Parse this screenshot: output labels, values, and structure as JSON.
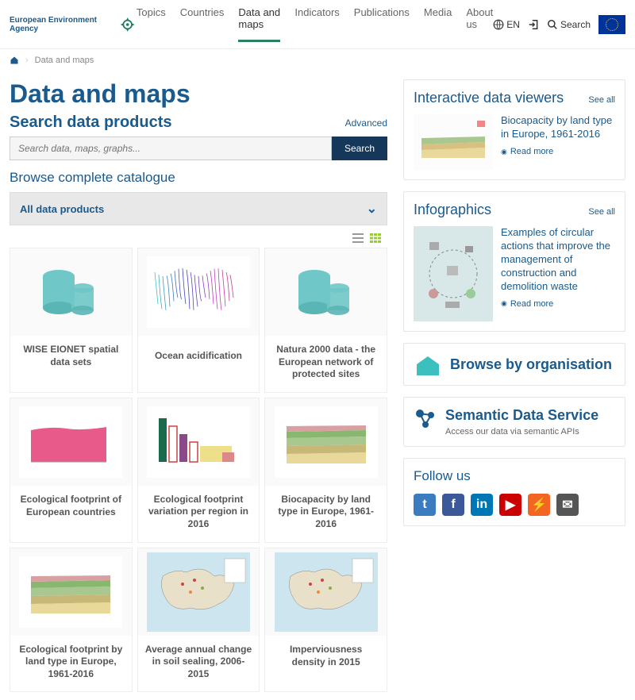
{
  "header": {
    "logo_text": "European Environment Agency",
    "nav": [
      "Topics",
      "Countries",
      "Data and maps",
      "Indicators",
      "Publications",
      "Media",
      "About us"
    ],
    "nav_active_index": 2,
    "lang": "EN",
    "search_label": "Search"
  },
  "breadcrumb": {
    "home_icon": "home",
    "current": "Data and maps"
  },
  "main": {
    "page_title": "Data and maps",
    "search_heading": "Search data products",
    "advanced": "Advanced",
    "search_placeholder": "Search data, maps, graphs...",
    "search_button": "Search",
    "browse_catalogue": "Browse complete catalogue",
    "filter_label": "All data products",
    "cards": [
      {
        "title": "WISE EIONET spatial data sets",
        "thumb": "cylinders"
      },
      {
        "title": "Ocean acidification",
        "thumb": "wave"
      },
      {
        "title": "Natura 2000 data - the European network of protected sites",
        "thumb": "cylinders"
      },
      {
        "title": "Ecological footprint of European countries",
        "thumb": "area-pink"
      },
      {
        "title": "Ecological footprint variation per region in 2016",
        "thumb": "bars"
      },
      {
        "title": "Biocapacity by land type in Europe, 1961-2016",
        "thumb": "stacked"
      },
      {
        "title": "Ecological footprint by land type in Europe, 1961-2016",
        "thumb": "stacked2"
      },
      {
        "title": "Average annual change in soil sealing, 2006-2015",
        "thumb": "map"
      },
      {
        "title": "Imperviousness density in 2015",
        "thumb": "map"
      }
    ]
  },
  "sidebar": {
    "viewers": {
      "title": "Interactive data viewers",
      "see_all": "See all",
      "item_title": "Biocapacity by land type in Europe, 1961-2016",
      "read_more": "Read more"
    },
    "infographics": {
      "title": "Infographics",
      "see_all": "See all",
      "item_title": "Examples of circular actions that improve the management of construction and demolition waste",
      "read_more": "Read more"
    },
    "org": {
      "text": "Browse by organisation"
    },
    "sds": {
      "title": "Semantic Data Service",
      "sub": "Access our data via semantic APIs"
    },
    "follow": {
      "title": "Follow us"
    },
    "social": [
      {
        "name": "twitter",
        "bg": "#3b7bbf",
        "glyph": "t"
      },
      {
        "name": "facebook",
        "bg": "#3b5998",
        "glyph": "f"
      },
      {
        "name": "linkedin",
        "bg": "#0077b5",
        "glyph": "in"
      },
      {
        "name": "youtube",
        "bg": "#cc0000",
        "glyph": "▶"
      },
      {
        "name": "rss",
        "bg": "#f26522",
        "glyph": "⚡"
      },
      {
        "name": "email",
        "bg": "#555555",
        "glyph": "✉"
      }
    ]
  },
  "colors": {
    "brand": "#1a5a8c",
    "accent": "#2a8060",
    "teal": "#6fc7c7"
  }
}
